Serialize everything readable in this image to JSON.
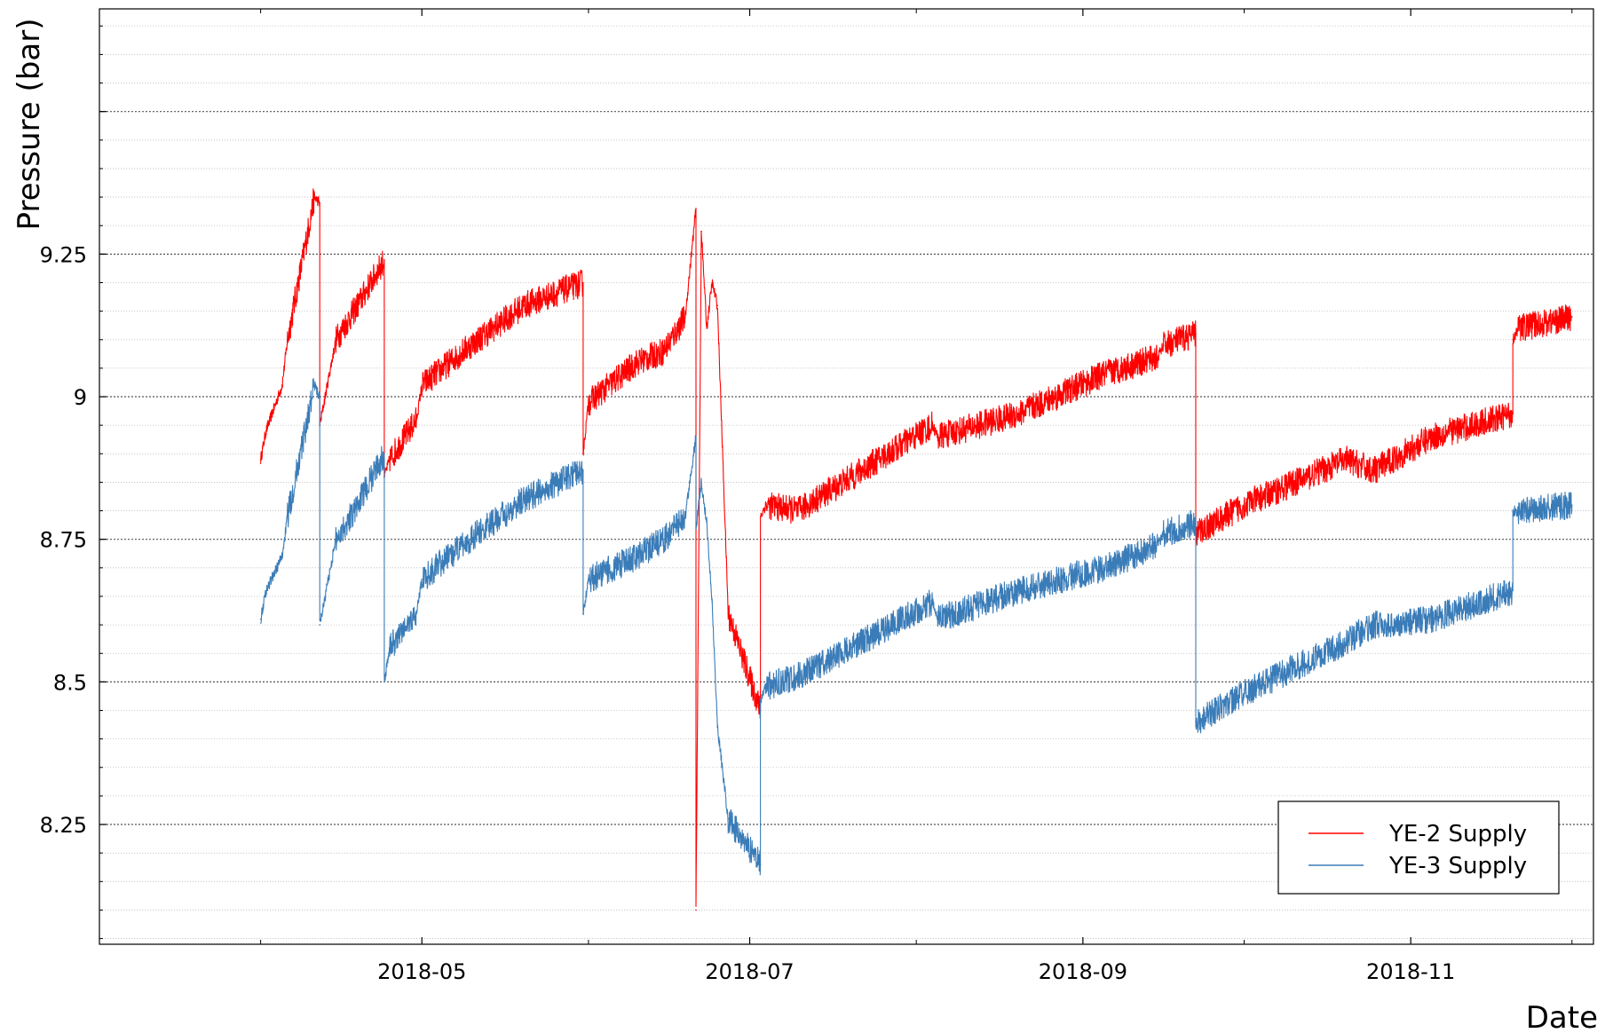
{
  "chart_data": {
    "type": "line",
    "title": "",
    "xlabel": "Date",
    "ylabel": "Pressure (bar)",
    "x_type": "date",
    "xlim": [
      "2018-03-02",
      "2018-12-05"
    ],
    "ylim": [
      8.04,
      9.68
    ],
    "x_ticks": [
      "2018-05",
      "2018-07",
      "2018-09",
      "2018-11"
    ],
    "y_ticks": [
      8.25,
      8.5,
      8.75,
      9,
      9.25
    ],
    "y_tick_labels": [
      "8.25",
      "8.5",
      "8.75",
      "9",
      "9.25"
    ],
    "grid": "horizontal dotted",
    "legend": {
      "position": "bottom-right"
    },
    "series": [
      {
        "name": "YE-2 Supply",
        "color": "#ff0000",
        "noise": 0.025,
        "x": [
          "2018-04-01",
          "2018-04-02",
          "2018-04-05",
          "2018-04-06",
          "2018-04-11",
          "2018-04-12",
          "2018-04-12",
          "2018-04-15",
          "2018-04-19",
          "2018-04-24",
          "2018-04-24",
          "2018-04-25",
          "2018-04-30",
          "2018-05-01",
          "2018-05-10",
          "2018-05-20",
          "2018-05-31",
          "2018-05-31",
          "2018-06-01",
          "2018-06-10",
          "2018-06-15",
          "2018-06-19",
          "2018-06-21",
          "2018-06-21",
          "2018-06-22",
          "2018-06-23",
          "2018-06-24",
          "2018-06-25",
          "2018-06-27",
          "2018-07-03",
          "2018-07-03",
          "2018-07-04",
          "2018-07-10",
          "2018-07-20",
          "2018-08-04",
          "2018-08-05",
          "2018-08-20",
          "2018-09-05",
          "2018-09-15",
          "2018-09-16",
          "2018-09-22",
          "2018-09-22",
          "2018-10-01",
          "2018-10-20",
          "2018-10-25",
          "2018-11-05",
          "2018-11-20",
          "2018-11-20",
          "2018-11-21",
          "2018-12-01"
        ],
        "y": [
          8.89,
          8.94,
          9.02,
          9.1,
          9.35,
          9.34,
          8.95,
          9.1,
          9.16,
          9.24,
          8.86,
          8.89,
          8.96,
          9.02,
          9.09,
          9.16,
          9.2,
          8.9,
          8.99,
          9.06,
          9.08,
          9.14,
          9.33,
          8.1,
          9.29,
          9.12,
          9.2,
          9.16,
          8.62,
          8.45,
          8.79,
          8.81,
          8.8,
          8.86,
          8.95,
          8.93,
          8.97,
          9.04,
          9.07,
          9.09,
          9.11,
          8.76,
          8.81,
          8.89,
          8.87,
          8.93,
          8.97,
          9.1,
          9.12,
          9.14
        ]
      },
      {
        "name": "YE-3 Supply",
        "color": "#3a7cb8",
        "noise": 0.025,
        "x": [
          "2018-04-01",
          "2018-04-02",
          "2018-04-05",
          "2018-04-06",
          "2018-04-11",
          "2018-04-12",
          "2018-04-12",
          "2018-04-15",
          "2018-04-19",
          "2018-04-24",
          "2018-04-24",
          "2018-04-25",
          "2018-04-30",
          "2018-05-01",
          "2018-05-10",
          "2018-05-20",
          "2018-05-31",
          "2018-05-31",
          "2018-06-01",
          "2018-06-10",
          "2018-06-15",
          "2018-06-19",
          "2018-06-21",
          "2018-06-21",
          "2018-06-22",
          "2018-06-23",
          "2018-06-24",
          "2018-06-25",
          "2018-06-27",
          "2018-07-03",
          "2018-07-03",
          "2018-07-04",
          "2018-07-10",
          "2018-07-20",
          "2018-08-04",
          "2018-08-05",
          "2018-08-20",
          "2018-09-05",
          "2018-09-15",
          "2018-09-16",
          "2018-09-22",
          "2018-09-22",
          "2018-10-01",
          "2018-10-20",
          "2018-10-25",
          "2018-11-05",
          "2018-11-20",
          "2018-11-20",
          "2018-11-21",
          "2018-12-01"
        ],
        "y": [
          8.61,
          8.66,
          8.72,
          8.79,
          9.02,
          9.0,
          8.6,
          8.75,
          8.81,
          8.9,
          8.5,
          8.56,
          8.62,
          8.68,
          8.75,
          8.82,
          8.87,
          8.62,
          8.68,
          8.72,
          8.75,
          8.79,
          8.93,
          8.77,
          8.85,
          8.78,
          8.64,
          8.42,
          8.26,
          8.18,
          8.47,
          8.49,
          8.51,
          8.56,
          8.64,
          8.61,
          8.66,
          8.7,
          8.74,
          8.76,
          8.78,
          8.43,
          8.48,
          8.57,
          8.6,
          8.61,
          8.66,
          8.8,
          8.8,
          8.81
        ]
      }
    ]
  }
}
